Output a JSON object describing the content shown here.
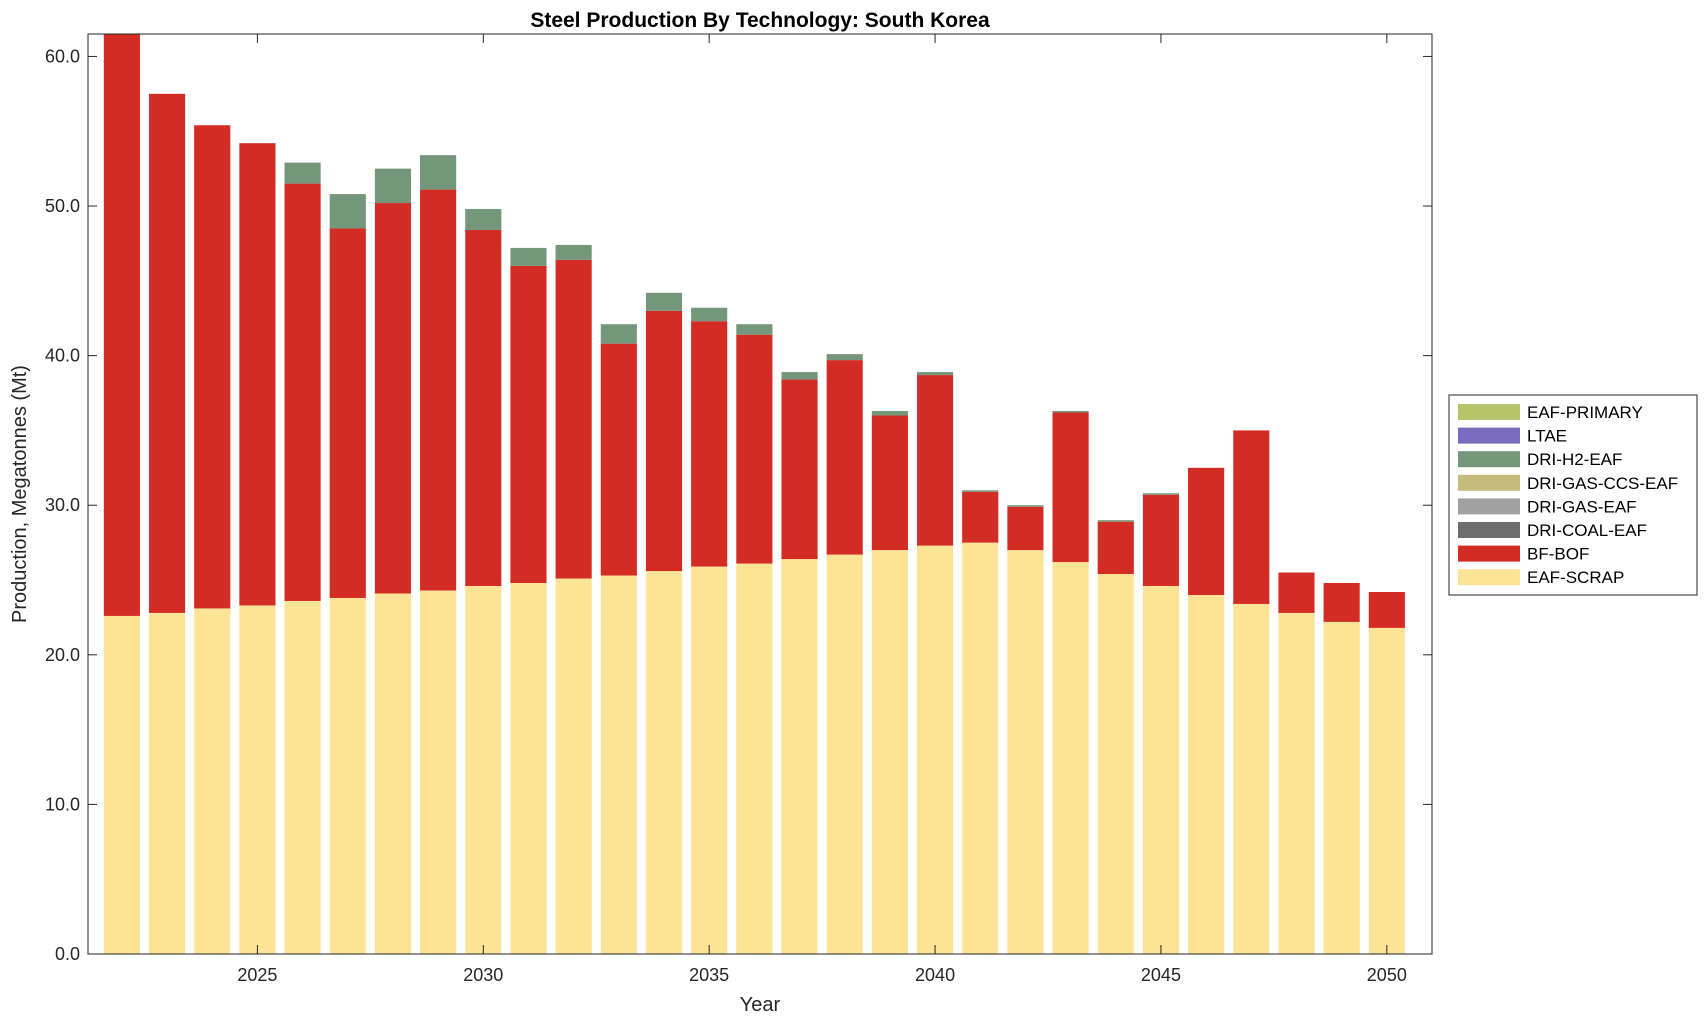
{
  "chart_data": {
    "type": "bar",
    "stacked": true,
    "title": "Steel Production By Technology: South Korea",
    "xlabel": "Year",
    "ylabel": "Production, Megatonnes (Mt)",
    "xlim": [
      2021.25,
      2051.0
    ],
    "ylim": [
      0,
      61.5
    ],
    "x_ticks": [
      2025,
      2030,
      2035,
      2040,
      2045,
      2050
    ],
    "y_ticks": [
      0,
      10,
      20,
      30,
      40,
      50,
      60
    ],
    "y_tick_labels": [
      "0.0",
      "10.0",
      "20.0",
      "30.0",
      "40.0",
      "50.0",
      "60.0"
    ],
    "legend_position": "outside-right",
    "grid": false,
    "categories": [
      2022,
      2023,
      2024,
      2025,
      2026,
      2027,
      2028,
      2029,
      2030,
      2031,
      2032,
      2033,
      2034,
      2035,
      2036,
      2037,
      2038,
      2039,
      2040,
      2041,
      2042,
      2043,
      2044,
      2045,
      2046,
      2047,
      2048,
      2049,
      2050
    ],
    "series": [
      {
        "name": "EAF-SCRAP",
        "color": "#fde396",
        "values": [
          22.6,
          22.8,
          23.1,
          23.3,
          23.6,
          23.8,
          24.1,
          24.3,
          24.6,
          24.8,
          25.1,
          25.3,
          25.6,
          25.9,
          26.1,
          26.4,
          26.7,
          27.0,
          27.3,
          27.5,
          27.0,
          26.2,
          25.4,
          24.6,
          24.0,
          23.4,
          22.8,
          22.2,
          21.8
        ]
      },
      {
        "name": "BF-BOF",
        "color": "#d22c25",
        "values": [
          38.9,
          34.7,
          32.3,
          30.9,
          27.9,
          24.7,
          26.1,
          26.8,
          23.8,
          21.2,
          21.3,
          15.5,
          17.4,
          16.4,
          15.3,
          12.0,
          13.0,
          9.0,
          11.4,
          3.4,
          2.9,
          10.0,
          3.5,
          6.1,
          8.5,
          11.6,
          2.7,
          2.6,
          2.4
        ]
      },
      {
        "name": "DRI-COAL-EAF",
        "color": "#6e6e6e",
        "values": [
          0,
          0,
          0,
          0,
          0,
          0,
          0,
          0,
          0,
          0,
          0,
          0,
          0,
          0,
          0,
          0,
          0,
          0,
          0,
          0,
          0,
          0,
          0,
          0,
          0,
          0,
          0,
          0,
          0
        ]
      },
      {
        "name": "DRI-GAS-EAF",
        "color": "#a1a1a1",
        "values": [
          0,
          0,
          0,
          0,
          0,
          0,
          0,
          0,
          0,
          0,
          0,
          0,
          0,
          0,
          0,
          0,
          0,
          0,
          0,
          0,
          0,
          0,
          0,
          0,
          0,
          0,
          0,
          0,
          0
        ]
      },
      {
        "name": "DRI-GAS-CCS-EAF",
        "color": "#c5bb7b",
        "values": [
          0,
          0,
          0,
          0,
          0,
          0,
          0,
          0,
          0,
          0,
          0,
          0,
          0,
          0,
          0,
          0,
          0,
          0,
          0,
          0,
          0,
          0,
          0,
          0,
          0,
          0,
          0,
          0,
          0
        ]
      },
      {
        "name": "DRI-H2-EAF",
        "color": "#74977b",
        "values": [
          0,
          0,
          0,
          0,
          1.4,
          2.3,
          2.3,
          2.3,
          1.4,
          1.2,
          1.0,
          1.3,
          1.2,
          0.9,
          0.7,
          0.5,
          0.4,
          0.3,
          0.2,
          0.1,
          0.1,
          0.1,
          0.1,
          0.1,
          0,
          0,
          0,
          0,
          0
        ]
      },
      {
        "name": "LTAE",
        "color": "#7a6bbf",
        "values": [
          0,
          0,
          0,
          0,
          0,
          0,
          0,
          0,
          0,
          0,
          0,
          0,
          0,
          0,
          0,
          0,
          0,
          0,
          0,
          0,
          0,
          0,
          0,
          0,
          0,
          0,
          0,
          0,
          0
        ]
      },
      {
        "name": "EAF-PRIMARY",
        "color": "#b7c46a",
        "values": [
          0,
          0,
          0,
          0,
          0,
          0,
          0,
          0,
          0,
          0,
          0,
          0,
          0,
          0,
          0,
          0,
          0,
          0,
          0,
          0,
          0,
          0,
          0,
          0,
          0,
          0,
          0,
          0,
          0
        ]
      }
    ],
    "legend_order": [
      "EAF-PRIMARY",
      "LTAE",
      "DRI-H2-EAF",
      "DRI-GAS-CCS-EAF",
      "DRI-GAS-EAF",
      "DRI-COAL-EAF",
      "BF-BOF",
      "EAF-SCRAP"
    ]
  }
}
